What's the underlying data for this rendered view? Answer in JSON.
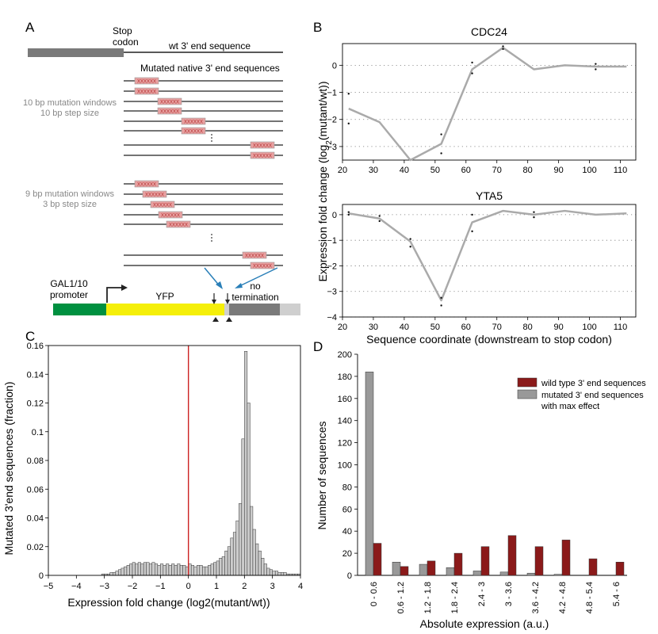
{
  "panels": {
    "A": {
      "letter": "A",
      "stop_codon": [
        "Stop",
        "codon"
      ],
      "wt_label": "wt 3' end sequence",
      "mut_label": "Mutated native 3' end sequences",
      "win10": [
        "10 bp mutation windows",
        "10 bp step size"
      ],
      "win9": [
        "9 bp mutation windows",
        "3 bp step size"
      ],
      "mut_text": "XXXXXX",
      "construct": {
        "promoter": [
          "GAL1/10",
          "promoter"
        ],
        "yfp": "YFP",
        "no_term": [
          "no",
          "termination"
        ]
      },
      "colors": {
        "promoter": "#009040",
        "yfp": "#f5ef0a",
        "dark_gray": "#7a7a7a",
        "light_gray": "#cfcfcf",
        "mut_box": "#e8a0a0",
        "arrow_blue": "#2a7fb8"
      }
    },
    "B": {
      "letter": "B"
    },
    "C": {
      "letter": "C"
    },
    "D": {
      "letter": "D"
    }
  },
  "chart_data": [
    {
      "panel": "B",
      "type": "line",
      "title": "CDC24",
      "x": [
        22,
        32,
        42,
        52,
        62,
        72,
        82,
        92,
        102,
        112
      ],
      "series": [
        {
          "values": [
            -1.6,
            -2.1,
            -3.5,
            -2.9,
            -0.15,
            0.65,
            -0.15,
            0.0,
            -0.05,
            -0.05
          ]
        }
      ],
      "points": [
        [
          22,
          -1.05
        ],
        [
          22,
          -2.15
        ],
        [
          52,
          -2.55
        ],
        [
          52,
          -3.25
        ],
        [
          62,
          0.1
        ],
        [
          62,
          -0.3
        ],
        [
          72,
          0.7
        ],
        [
          72,
          0.6
        ],
        [
          102,
          0.05
        ],
        [
          102,
          -0.15
        ]
      ],
      "xlim": [
        20,
        115
      ],
      "ylim": [
        -3.5,
        0.8
      ],
      "xticks": [
        20,
        30,
        40,
        50,
        60,
        70,
        80,
        90,
        100,
        110
      ],
      "yticks": [
        0,
        -1,
        -2,
        -3
      ],
      "grid": "dotted-horizontal",
      "line_color": "#aaaaaa"
    },
    {
      "panel": "B",
      "type": "line",
      "title": "YTA5",
      "x": [
        22,
        32,
        42,
        52,
        62,
        72,
        82,
        92,
        102,
        112
      ],
      "series": [
        {
          "values": [
            0.05,
            -0.15,
            -1.05,
            -3.35,
            -0.3,
            0.15,
            0.0,
            0.15,
            0.0,
            0.05
          ]
        }
      ],
      "points": [
        [
          22,
          0.1
        ],
        [
          22,
          0.0
        ],
        [
          32,
          -0.05
        ],
        [
          32,
          -0.25
        ],
        [
          42,
          -0.95
        ],
        [
          42,
          -1.25
        ],
        [
          52,
          -3.25
        ],
        [
          52,
          -3.55
        ],
        [
          62,
          0.0
        ],
        [
          62,
          -0.65
        ],
        [
          82,
          0.1
        ],
        [
          82,
          -0.1
        ]
      ],
      "xlim": [
        20,
        115
      ],
      "ylim": [
        -4,
        0.4
      ],
      "xticks": [
        20,
        30,
        40,
        50,
        60,
        70,
        80,
        90,
        100,
        110
      ],
      "yticks": [
        0,
        -1,
        -2,
        -3,
        -4
      ],
      "xlabel": "Sequence coordinate (downstream to stop codon)",
      "ylabel_main": "Expression fold change (log",
      "ylabel_sub": "2",
      "ylabel_tail": "(mutant/wt))",
      "grid": "dotted-horizontal",
      "line_color": "#aaaaaa"
    },
    {
      "panel": "C",
      "type": "bar",
      "subtype": "histogram",
      "bin_width": 0.1,
      "bin_start": -5,
      "values": [
        0,
        0,
        0,
        0,
        0,
        0,
        0,
        0,
        0,
        0,
        0,
        0,
        0,
        0,
        0,
        0,
        0,
        0,
        0,
        0.001,
        0.001,
        0.001,
        0.002,
        0.002,
        0.003,
        0.004,
        0.005,
        0.006,
        0.007,
        0.008,
        0.009,
        0.008,
        0.009,
        0.008,
        0.009,
        0.009,
        0.008,
        0.009,
        0.008,
        0.007,
        0.008,
        0.007,
        0.008,
        0.007,
        0.008,
        0.007,
        0.008,
        0.007,
        0.007,
        0.006,
        0.008,
        0.007,
        0.006,
        0.007,
        0.007,
        0.006,
        0.006,
        0.007,
        0.008,
        0.009,
        0.01,
        0.012,
        0.013,
        0.017,
        0.02,
        0.026,
        0.03,
        0.038,
        0.05,
        0.095,
        0.156,
        0.12,
        0.048,
        0.032,
        0.022,
        0.017,
        0.012,
        0.008,
        0.005,
        0.004,
        0.003,
        0.003,
        0.002,
        0.002,
        0.002,
        0.001,
        0.001,
        0.001,
        0.001,
        0.001,
        0,
        0,
        0,
        0,
        0,
        0,
        0,
        0,
        0,
        0
      ],
      "xlim": [
        -5,
        4
      ],
      "ylim": [
        0,
        0.16
      ],
      "xticks": [
        -5,
        -4,
        -3,
        -2,
        -1,
        0,
        1,
        2,
        3,
        4
      ],
      "yticks": [
        0,
        0.02,
        0.04,
        0.06,
        0.08,
        0.1,
        0.12,
        0.14,
        0.16
      ],
      "xlabel": "Expression fold change (log2(mutant/wt))",
      "ylabel": "Mutated 3'end sequences (fraction)",
      "vline_x": 0,
      "vline_color": "#cc2222",
      "bar_color": "#cccccc"
    },
    {
      "panel": "D",
      "type": "bar",
      "categories": [
        "0 - 0.6",
        "0.6 - 1.2",
        "1.2 - 1.8",
        "1.8 - 2.4",
        "2.4 - 3",
        "3 - 3.6",
        "3.6 - 4.2",
        "4.2 - 4.8",
        "4.8 - 5.4",
        "5.4 - 6"
      ],
      "series": [
        {
          "name": "mutated 3' end sequences",
          "name2": "with max effect",
          "values": [
            184,
            12,
            10,
            7,
            4,
            3,
            2,
            1,
            0,
            0
          ],
          "color": "#999999"
        },
        {
          "name": "wild type 3' end sequences",
          "values": [
            29,
            8,
            13,
            20,
            26,
            36,
            26,
            32,
            15,
            12
          ],
          "color": "#8b1a1a"
        }
      ],
      "ylim": [
        0,
        200
      ],
      "yticks": [
        0,
        20,
        40,
        60,
        80,
        100,
        120,
        140,
        160,
        180,
        200
      ],
      "xlabel": "Absolute expression (a.u.)",
      "ylabel": "Number of sequences",
      "legend": "top-right"
    }
  ]
}
